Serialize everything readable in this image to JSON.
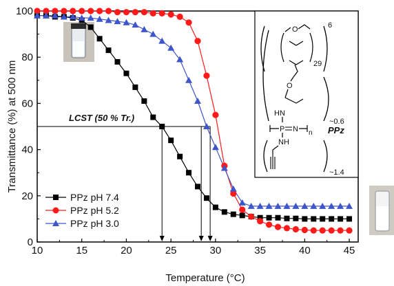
{
  "chart_data": {
    "type": "scatter",
    "title": "",
    "xlabel": "Temperature (°C)",
    "ylabel": "Transmittance (%) at 500 nm",
    "xlim": [
      10,
      46
    ],
    "ylim": [
      0,
      100
    ],
    "xticks": [
      10,
      15,
      20,
      25,
      30,
      35,
      40,
      45
    ],
    "yticks": [
      0,
      20,
      40,
      60,
      80,
      100
    ],
    "grid": false,
    "legend_position": "bottom-left",
    "series": [
      {
        "name": "PPz pH 7.4",
        "color": "#000000",
        "marker": "square",
        "x": [
          10,
          11,
          12,
          13,
          14,
          15,
          16,
          17,
          18,
          19,
          20,
          21,
          22,
          23,
          24,
          25,
          26,
          27,
          28,
          29,
          30,
          31,
          32,
          33,
          34,
          35,
          36,
          37,
          38,
          39,
          40,
          41,
          42,
          43,
          44,
          45
        ],
        "y": [
          98,
          98,
          97.5,
          97.5,
          97,
          96,
          93,
          88,
          83,
          78,
          73,
          67,
          61,
          54,
          50,
          44,
          37,
          30,
          24,
          19,
          15,
          13,
          12,
          11.5,
          11,
          10.5,
          10.5,
          10.5,
          10.2,
          10.2,
          10,
          10,
          10,
          10,
          10,
          10
        ]
      },
      {
        "name": "PPz pH 5.2",
        "color": "#ff1a1a",
        "marker": "circle",
        "x": [
          10,
          11,
          12,
          13,
          14,
          15,
          16,
          17,
          18,
          19,
          20,
          21,
          22,
          23,
          24,
          25,
          26,
          27,
          28,
          29,
          30,
          31,
          32,
          33,
          34,
          35,
          36,
          37,
          38,
          39,
          40,
          41,
          42,
          43,
          44,
          45
        ],
        "y": [
          100,
          100,
          100,
          100,
          100,
          100,
          100,
          100,
          100,
          99.5,
          99.5,
          99.5,
          99.5,
          99,
          99,
          98.5,
          97.5,
          95,
          87,
          72,
          55,
          33,
          21,
          14,
          11,
          9,
          7.5,
          6.5,
          6,
          5.5,
          5.2,
          5,
          5,
          5,
          5,
          5
        ]
      },
      {
        "name": "PPz pH 3.0",
        "color": "#3f56c8",
        "marker": "triangle",
        "x": [
          10,
          11,
          12,
          13,
          14,
          15,
          16,
          17,
          18,
          19,
          20,
          21,
          22,
          23,
          24,
          25,
          26,
          27,
          28,
          29,
          30,
          31,
          32,
          33,
          34,
          35,
          36,
          37,
          38,
          39,
          40,
          41,
          42,
          43,
          44,
          45
        ],
        "y": [
          98,
          98,
          98,
          97.5,
          97.5,
          97,
          97,
          96.5,
          96,
          95.5,
          95,
          94,
          92,
          90,
          87,
          84,
          79,
          70,
          61,
          50,
          41,
          32,
          23,
          17,
          15.5,
          15.5,
          15.5,
          15.5,
          15.5,
          15.5,
          15.5,
          15.5,
          15.5,
          15.5,
          15.5,
          15.5
        ]
      }
    ],
    "annotations": {
      "lcst_label": "LCST (50 % Tr.)",
      "lcst_y": 50,
      "lcst_x_values": [
        24,
        28.4,
        29.4
      ]
    },
    "inset": {
      "polymer_label": "PPz",
      "subscript_6": "6",
      "subscript_29": "29",
      "subscript_n": "n",
      "ratio_a": "~0.6",
      "ratio_b": "~1.4",
      "hn_label": "HN",
      "nh_label": "NH",
      "p_label": "P",
      "n_label": "N",
      "o_label": "O"
    }
  }
}
